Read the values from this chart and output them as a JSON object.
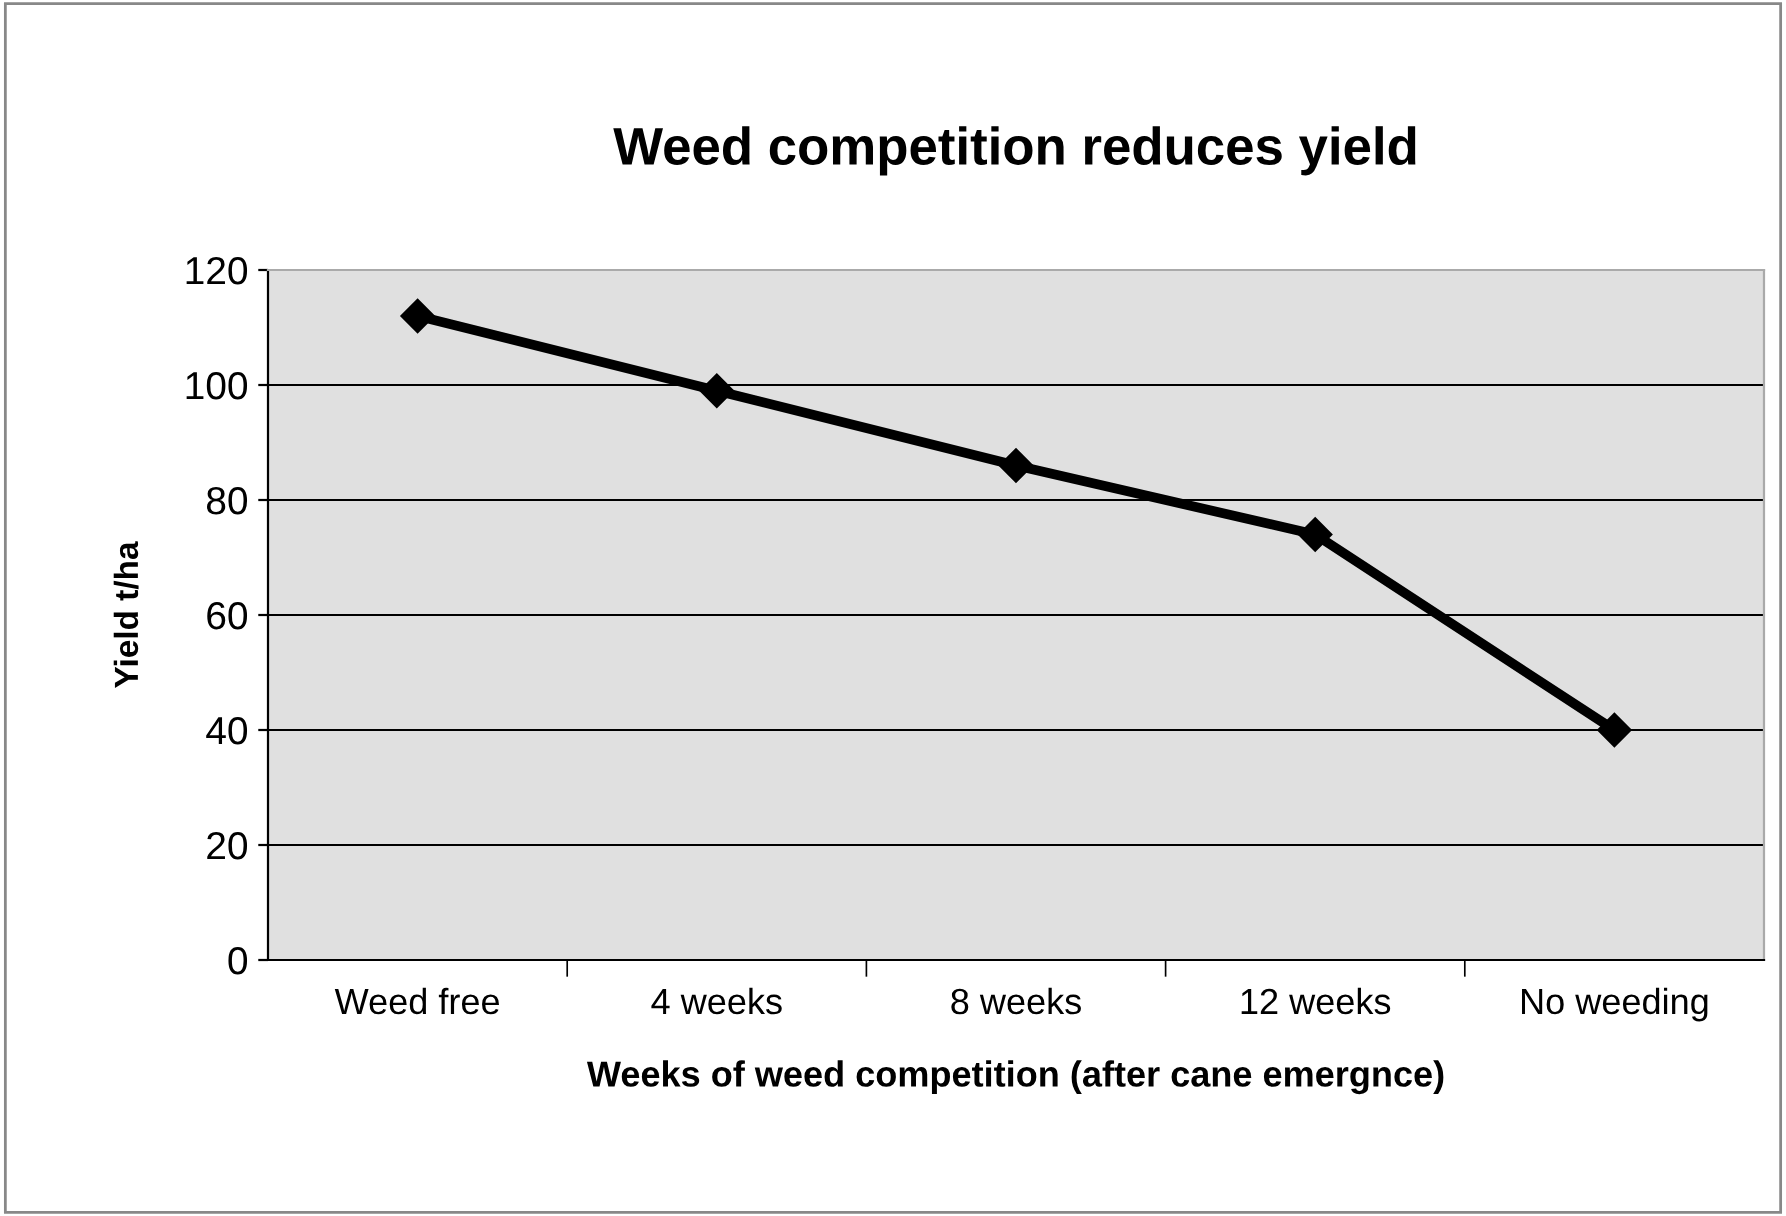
{
  "chart_data": {
    "type": "line",
    "title": "Weed competition reduces yield",
    "xlabel": "Weeks of weed competition (after cane emergnce)",
    "ylabel": "Yield t/ha",
    "categories": [
      "Weed free",
      "4 weeks",
      "8 weeks",
      "12 weeks",
      "No weeding"
    ],
    "series": [
      {
        "color": "#000000",
        "values": [
          112,
          99,
          86,
          74,
          40
        ]
      }
    ],
    "ylim": [
      0,
      120
    ],
    "yticks": [
      0,
      20,
      40,
      60,
      80,
      100,
      120
    ],
    "grid": "y",
    "marker": "diamond",
    "line_style": "solid"
  }
}
